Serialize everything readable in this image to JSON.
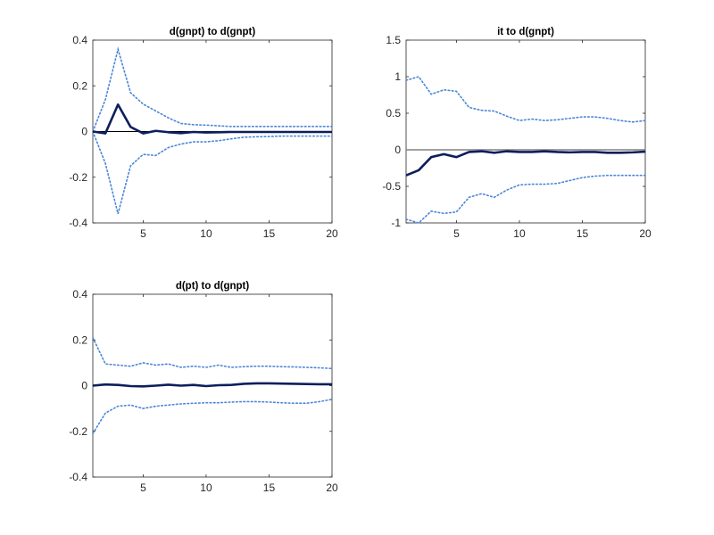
{
  "chart_data": [
    {
      "type": "line",
      "title": "d(gnpt) to d(gnpt)",
      "xlabel": "",
      "ylabel": "",
      "xlim": [
        1,
        20
      ],
      "ylim": [
        -0.4,
        0.4
      ],
      "xticks": [
        "5",
        "10",
        "15",
        "20"
      ],
      "yticks": [
        "-0.4",
        "-0.2",
        "0",
        "0.2",
        "0.4"
      ],
      "grid": false,
      "x": [
        1,
        2,
        3,
        4,
        5,
        6,
        7,
        8,
        9,
        10,
        11,
        12,
        13,
        14,
        15,
        16,
        17,
        18,
        19,
        20
      ],
      "zero_line": true,
      "series": [
        {
          "role": "upper-band",
          "style": "dotted",
          "color": "#4a86d8",
          "values": [
            0.0,
            0.14,
            0.36,
            0.17,
            0.12,
            0.09,
            0.06,
            0.035,
            0.03,
            0.028,
            0.025,
            0.022,
            0.022,
            0.022,
            0.022,
            0.022,
            0.022,
            0.022,
            0.022,
            0.022
          ]
        },
        {
          "role": "lower-band",
          "style": "dotted",
          "color": "#4a86d8",
          "values": [
            0.0,
            -0.14,
            -0.36,
            -0.15,
            -0.1,
            -0.105,
            -0.07,
            -0.055,
            -0.045,
            -0.045,
            -0.04,
            -0.032,
            -0.025,
            -0.023,
            -0.022,
            -0.02,
            -0.02,
            -0.02,
            -0.02,
            -0.02
          ]
        },
        {
          "role": "response",
          "style": "solid",
          "color": "#0d1e5c",
          "values": [
            0.0,
            -0.008,
            0.118,
            0.02,
            -0.008,
            0.003,
            -0.003,
            -0.007,
            -0.002,
            -0.004,
            -0.003,
            -0.002,
            -0.002,
            -0.002,
            -0.002,
            -0.002,
            -0.002,
            -0.002,
            -0.002,
            -0.002
          ]
        }
      ]
    },
    {
      "type": "line",
      "title": "it to d(gnpt)",
      "xlabel": "",
      "ylabel": "",
      "xlim": [
        1,
        20
      ],
      "ylim": [
        -1,
        1.5
      ],
      "xticks": [
        "5",
        "10",
        "15",
        "20"
      ],
      "yticks": [
        "-1",
        "-0.5",
        "0",
        "0.5",
        "1",
        "1.5"
      ],
      "grid": false,
      "x": [
        1,
        2,
        3,
        4,
        5,
        6,
        7,
        8,
        9,
        10,
        11,
        12,
        13,
        14,
        15,
        16,
        17,
        18,
        19,
        20
      ],
      "zero_line": true,
      "series": [
        {
          "role": "upper-band",
          "style": "dotted",
          "color": "#4a86d8",
          "values": [
            0.95,
            1.0,
            0.76,
            0.82,
            0.8,
            0.58,
            0.54,
            0.53,
            0.46,
            0.4,
            0.42,
            0.4,
            0.41,
            0.43,
            0.45,
            0.45,
            0.43,
            0.4,
            0.38,
            0.4
          ]
        },
        {
          "role": "lower-band",
          "style": "dotted",
          "color": "#4a86d8",
          "values": [
            -0.95,
            -1.0,
            -0.84,
            -0.87,
            -0.85,
            -0.65,
            -0.6,
            -0.65,
            -0.55,
            -0.48,
            -0.47,
            -0.47,
            -0.46,
            -0.42,
            -0.38,
            -0.36,
            -0.35,
            -0.35,
            -0.35,
            -0.35
          ]
        },
        {
          "role": "response",
          "style": "solid",
          "color": "#0d1e5c",
          "values": [
            -0.35,
            -0.28,
            -0.1,
            -0.06,
            -0.1,
            -0.03,
            -0.02,
            -0.04,
            -0.02,
            -0.03,
            -0.03,
            -0.02,
            -0.03,
            -0.035,
            -0.03,
            -0.03,
            -0.04,
            -0.04,
            -0.035,
            -0.025
          ]
        }
      ]
    },
    {
      "type": "line",
      "title": "d(pt) to d(gnpt)",
      "xlabel": "",
      "ylabel": "",
      "xlim": [
        1,
        20
      ],
      "ylim": [
        -0.4,
        0.4
      ],
      "xticks": [
        "5",
        "10",
        "15",
        "20"
      ],
      "yticks": [
        "-0.4",
        "-0.2",
        "0",
        "0.2",
        "0.4"
      ],
      "grid": false,
      "x": [
        1,
        2,
        3,
        4,
        5,
        6,
        7,
        8,
        9,
        10,
        11,
        12,
        13,
        14,
        15,
        16,
        17,
        18,
        19,
        20
      ],
      "zero_line": false,
      "series": [
        {
          "role": "upper-band",
          "style": "dotted",
          "color": "#4a86d8",
          "values": [
            0.21,
            0.095,
            0.09,
            0.085,
            0.1,
            0.09,
            0.095,
            0.08,
            0.085,
            0.08,
            0.09,
            0.08,
            0.083,
            0.085,
            0.085,
            0.083,
            0.082,
            0.08,
            0.078,
            0.075
          ]
        },
        {
          "role": "lower-band",
          "style": "dotted",
          "color": "#4a86d8",
          "values": [
            -0.21,
            -0.12,
            -0.09,
            -0.085,
            -0.1,
            -0.09,
            -0.085,
            -0.08,
            -0.077,
            -0.075,
            -0.075,
            -0.072,
            -0.07,
            -0.07,
            -0.072,
            -0.075,
            -0.077,
            -0.077,
            -0.07,
            -0.06
          ]
        },
        {
          "role": "response",
          "style": "solid",
          "color": "#0d1e5c",
          "values": [
            0.0,
            0.005,
            0.003,
            -0.002,
            -0.003,
            0.0,
            0.004,
            0.0,
            0.003,
            -0.002,
            0.002,
            0.003,
            0.008,
            0.01,
            0.01,
            0.009,
            0.008,
            0.007,
            0.006,
            0.006
          ]
        }
      ]
    }
  ]
}
